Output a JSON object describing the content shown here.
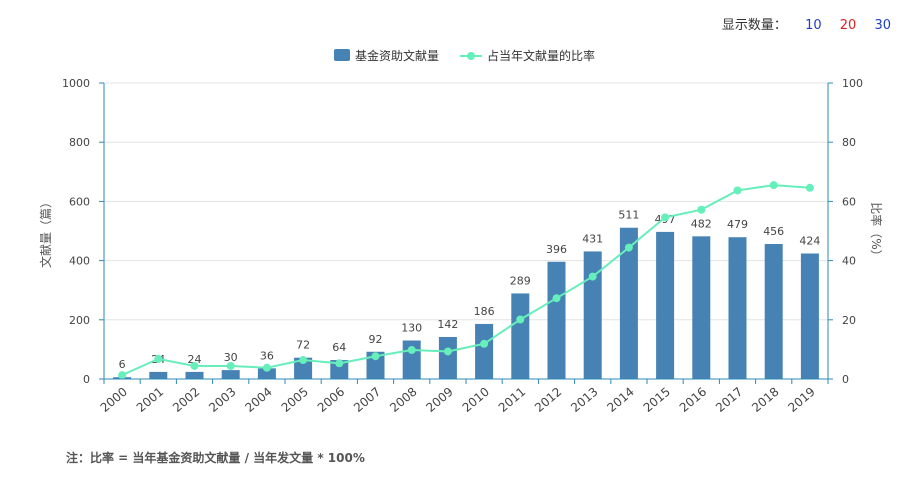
{
  "controls": {
    "label": "显示数量：",
    "options": [
      {
        "label": "10",
        "color": "#1f3fbf"
      },
      {
        "label": "20",
        "color": "#e02020"
      },
      {
        "label": "30",
        "color": "#1f3fbf"
      }
    ]
  },
  "note": "注：比率 = 当年基金资助文献量 / 当年发文量 * 100%",
  "chart_data": {
    "type": "bar+line",
    "categories": [
      "2000",
      "2001",
      "2002",
      "2003",
      "2004",
      "2005",
      "2006",
      "2007",
      "2008",
      "2009",
      "2010",
      "2011",
      "2012",
      "2013",
      "2014",
      "2015",
      "2016",
      "2017",
      "2018",
      "2019"
    ],
    "series": [
      {
        "name": "基金资助文献量",
        "type": "bar",
        "axis": "left",
        "color": "#4682b4",
        "values": [
          6,
          24,
          24,
          30,
          36,
          72,
          64,
          92,
          130,
          142,
          186,
          289,
          396,
          431,
          511,
          497,
          482,
          479,
          456,
          424
        ]
      },
      {
        "name": "占当年文献量的比率",
        "type": "line",
        "axis": "right",
        "color": "#66eebb",
        "values": [
          1.3,
          6.8,
          4.4,
          4.4,
          3.8,
          6.4,
          5.3,
          7.7,
          9.8,
          9.3,
          11.9,
          20.1,
          27.3,
          34.6,
          44.4,
          54.6,
          57.2,
          63.7,
          65.5,
          64.6
        ]
      }
    ],
    "ylabel": "文献量（篇）",
    "y2label": "比率（%）",
    "ylim": [
      0,
      1000
    ],
    "y2lim": [
      0,
      100
    ],
    "yticks": [
      0,
      200,
      400,
      600,
      800,
      1000
    ],
    "y2ticks": [
      0,
      20,
      40,
      60,
      80,
      100
    ],
    "grid": true,
    "legend": "top-center",
    "axis_color": "#2e8bb7"
  }
}
